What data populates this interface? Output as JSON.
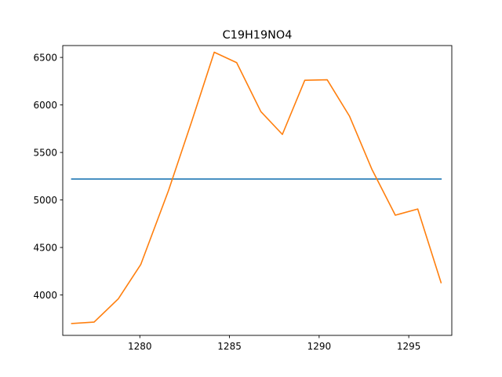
{
  "chart_data": {
    "type": "line",
    "title": "C19H19NO4",
    "xlabel": "",
    "ylabel": "",
    "xlim": [
      1275.7,
      1297.4
    ],
    "ylim": [
      3575,
      6625
    ],
    "xticks": [
      1280,
      1285,
      1290,
      1295
    ],
    "yticks": [
      4000,
      4500,
      5000,
      5500,
      6000,
      6500
    ],
    "grid": false,
    "series": [
      {
        "color": "#1f77b4",
        "x": [
          1276.2,
          1296.8
        ],
        "y": [
          5220,
          5220
        ]
      },
      {
        "color": "#ff7f0e",
        "x": [
          1276.2,
          1277.45,
          1278.8,
          1280.05,
          1281.6,
          1282.9,
          1284.15,
          1285.4,
          1286.75,
          1287.95,
          1289.2,
          1290.45,
          1291.7,
          1292.95,
          1294.25,
          1295.5,
          1296.8
        ],
        "y": [
          3700,
          3715,
          3960,
          4320,
          5100,
          5830,
          6555,
          6445,
          5930,
          5690,
          6260,
          6265,
          5880,
          5320,
          4840,
          4905,
          4130
        ]
      }
    ]
  }
}
